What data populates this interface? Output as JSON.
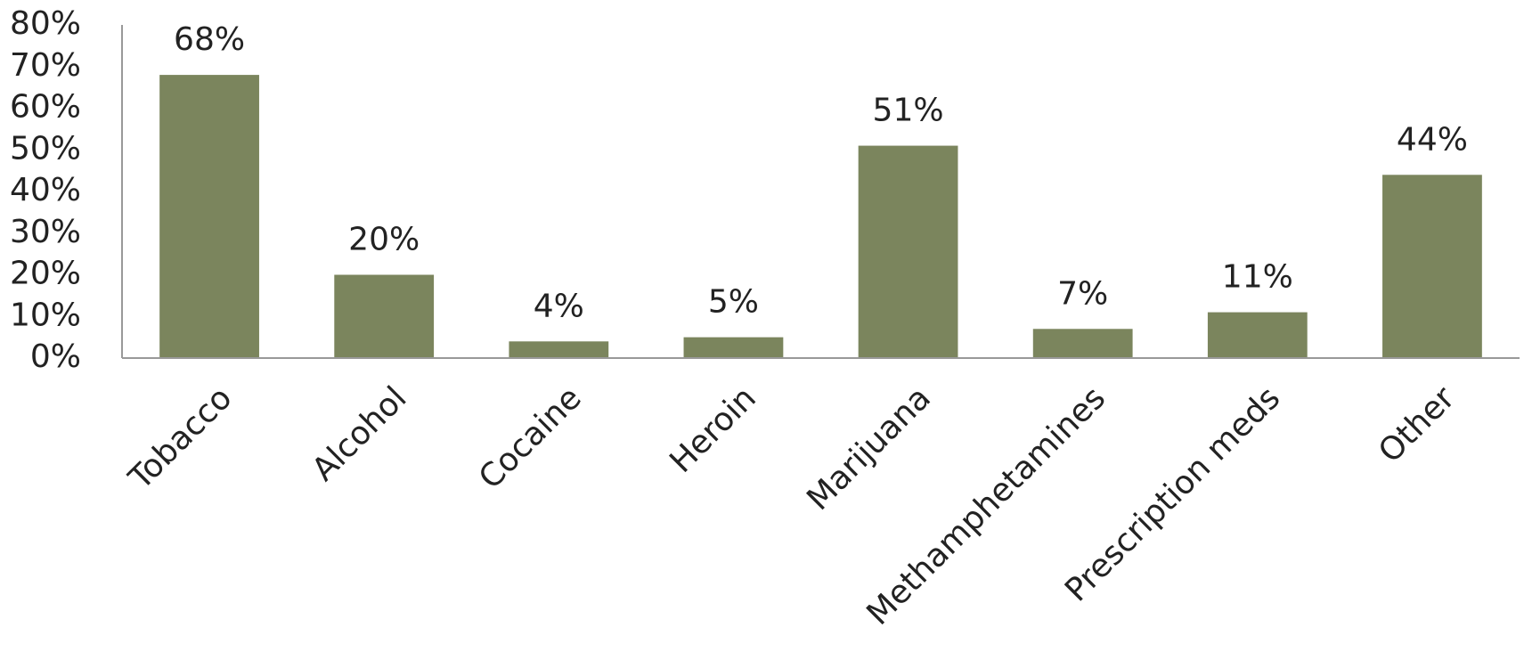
{
  "chart_data": {
    "type": "bar",
    "categories": [
      "Tobacco",
      "Alcohol",
      "Cocaine",
      "Heroin",
      "Marijuana",
      "Methamphetamines",
      "Prescription meds",
      "Other"
    ],
    "values": [
      68,
      20,
      4,
      5,
      51,
      7,
      11,
      44
    ],
    "value_labels": [
      "68%",
      "20%",
      "4%",
      "5%",
      "51%",
      "7%",
      "11%",
      "44%"
    ],
    "color": "#7b855d",
    "ylim": [
      0,
      80
    ],
    "yticks": [
      {
        "value": 0,
        "label": "0%"
      },
      {
        "value": 10,
        "label": "10%"
      },
      {
        "value": 20,
        "label": "20%"
      },
      {
        "value": 30,
        "label": "30%"
      },
      {
        "value": 40,
        "label": "40%"
      },
      {
        "value": 50,
        "label": "50%"
      },
      {
        "value": 60,
        "label": "60%"
      },
      {
        "value": 70,
        "label": "70%"
      },
      {
        "value": 80,
        "label": "80%"
      }
    ],
    "grid": false
  }
}
